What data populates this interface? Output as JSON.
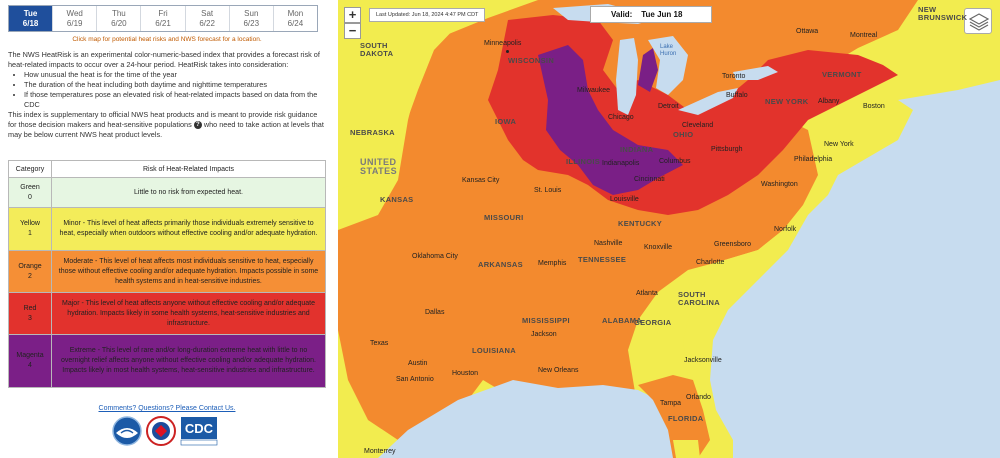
{
  "day_tabs": [
    {
      "day": "Tue",
      "date": "6/18",
      "active": true
    },
    {
      "day": "Wed",
      "date": "6/19",
      "active": false
    },
    {
      "day": "Thu",
      "date": "6/20",
      "active": false
    },
    {
      "day": "Fri",
      "date": "6/21",
      "active": false
    },
    {
      "day": "Sat",
      "date": "6/22",
      "active": false
    },
    {
      "day": "Sun",
      "date": "6/23",
      "active": false
    },
    {
      "day": "Mon",
      "date": "6/24",
      "active": false
    }
  ],
  "click_hint": "Click map for potential heat risks and NWS forecast for a location.",
  "intro": {
    "p1": "The NWS HeatRisk is an experimental color-numeric-based index that provides a forecast risk of heat-related impacts to occur over a 24-hour period. HeatRisk takes into consideration:",
    "bullets": [
      "How unusual the heat is for the time of the year",
      "The duration of the heat including both daytime and nighttime temperatures",
      "If those temperatures pose an elevated risk of heat-related impacts based on data from the CDC"
    ],
    "p2a": "This index is supplementary to official NWS heat products and is meant to provide risk guidance for those decision makers and heat-sensitive populations",
    "info_glyph": "?",
    "p2b": "who need to take action at levels that may be below current NWS heat product levels."
  },
  "table": {
    "col_category": "Category",
    "col_risk": "Risk of Heat-Related Impacts",
    "rows": [
      {
        "name": "Green",
        "level": "0",
        "desc": "Little to no risk from expected heat.",
        "color": "#e6f6e2"
      },
      {
        "name": "Yellow",
        "level": "1",
        "desc": "Minor - This level of heat affects primarily those individuals extremely sensitive to heat, especially when outdoors without effective cooling and/or adequate hydration.",
        "color": "#f3ec5a"
      },
      {
        "name": "Orange",
        "level": "2",
        "desc": "Moderate - This level of heat affects most individuals sensitive to heat, especially those without effective cooling and/or adequate hydration. Impacts possible in some health systems and in heat-sensitive industries.",
        "color": "#f58f36"
      },
      {
        "name": "Red",
        "level": "3",
        "desc": "Major - This level of heat affects anyone without effective cooling and/or adequate hydration. Impacts likely in some health systems, heat-sensitive industries and infrastructure.",
        "color": "#e2322d"
      },
      {
        "name": "Magenta",
        "level": "4",
        "desc": "Extreme - This level of rare and/or long-duration extreme heat with little to no overnight relief affects anyone without effective cooling and/or adequate hydration. Impacts likely in most health systems, heat-sensitive industries and infrastructure.",
        "color": "#7b1f87"
      }
    ]
  },
  "contact_link": "Comments? Questions? Please Contact Us.",
  "logos": {
    "noaa_alt": "NOAA",
    "nws_alt": "NWS",
    "cdc_text": "CDC"
  },
  "map": {
    "zoom_in": "+",
    "zoom_out": "−",
    "last_updated": "Last Updated:     Jun 18, 2024 4:47 PM CDT",
    "valid_label": "Valid:",
    "valid_value": "Tue  Jun 18",
    "layers_icon": "layers-icon",
    "labels": {
      "south_dakota": "SOUTH\nDAKOTA",
      "nebraska": "NEBRASKA",
      "kansas": "KANSAS",
      "iowa": "IOWA",
      "illinois": "ILLINOIS",
      "indiana": "INDIANA",
      "ohio": "OHIO",
      "missouri": "MISSOURI",
      "kentucky": "KENTUCKY",
      "tennessee": "TENNESSEE",
      "arkansas": "ARKANSAS",
      "mississippi": "MISSISSIPPI",
      "alabama": "ALABAMA",
      "georgia": "GEORGIA",
      "louisiana": "LOUISIANA",
      "florida": "FLORIDA",
      "south_carolina": "SOUTH\nCAROLINA",
      "new_york": "NEW YORK",
      "vermont": "VERMONT",
      "wisconsin": "WISCONSIN",
      "new_brunswick": "NEW\nBRUNSWICK",
      "usa": "UNITED\nSTATES",
      "lake_huron": "Lake\nHuron",
      "minneapolis": "Minneapolis",
      "milwaukee": "Milwaukee",
      "chicago": "Chicago",
      "detroit": "Detroit",
      "toronto": "Toronto",
      "ottawa": "Ottawa",
      "montreal": "Montreal",
      "buffalo": "Buffalo",
      "albany": "Albany",
      "boston": "Boston",
      "cleveland": "Cleveland",
      "pittsburgh": "Pittsburgh",
      "new_york_city": "New York",
      "philadelphia": "Philadelphia",
      "washington": "Washington",
      "indianapolis": "Indianapolis",
      "columbus": "Columbus",
      "cincinnati": "Cincinnati",
      "louisville": "Louisville",
      "st_louis": "St. Louis",
      "kansas_city": "Kansas City",
      "nashville": "Nashville",
      "knoxville": "Knoxville",
      "norfolk": "Norfolk",
      "greensboro": "Greensboro",
      "charlotte": "Charlotte",
      "memphis": "Memphis",
      "oklahoma_city": "Oklahoma City",
      "atlanta": "Atlanta",
      "dallas": "Dallas",
      "jackson": "Jackson",
      "texas": "Texas",
      "austin": "Austin",
      "houston": "Houston",
      "san_antonio": "San Antonio",
      "new_orleans": "New Orleans",
      "jacksonville": "Jacksonville",
      "orlando": "Orlando",
      "tampa": "Tampa",
      "monterrey": "Monterrey"
    }
  }
}
